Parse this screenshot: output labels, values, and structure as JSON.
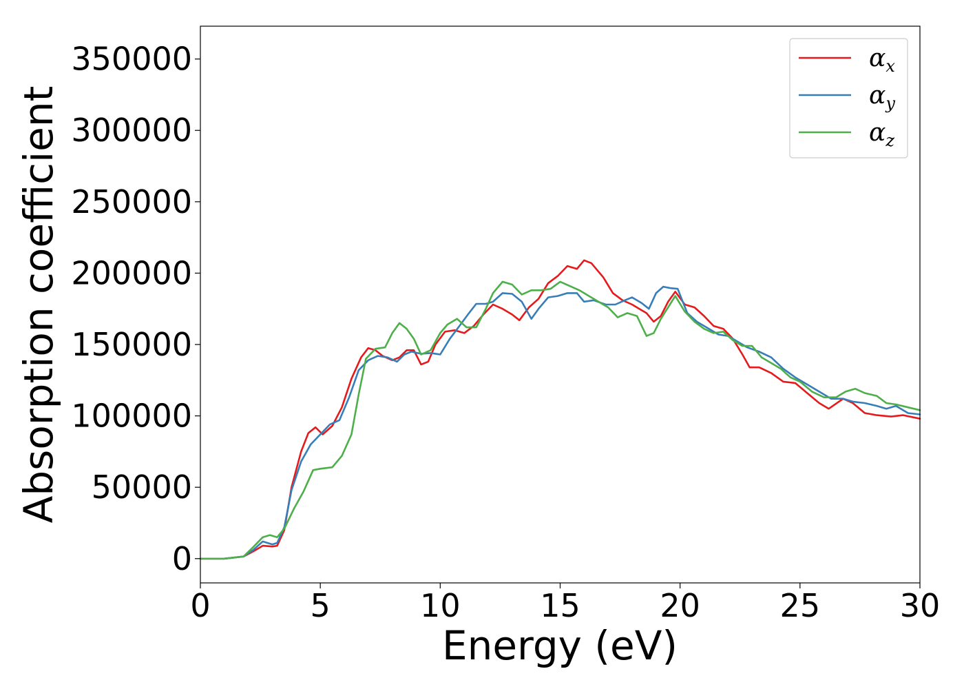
{
  "chart_data": {
    "type": "line",
    "xlabel": "Energy (eV)",
    "ylabel": "Absorption coefficient",
    "xlim": [
      0,
      30
    ],
    "ylim": [
      -17000,
      373000
    ],
    "xticks": [
      0,
      5,
      10,
      15,
      20,
      25,
      30
    ],
    "yticks": [
      0,
      50000,
      100000,
      150000,
      200000,
      250000,
      300000,
      350000
    ],
    "xtick_labels": [
      "0",
      "5",
      "10",
      "15",
      "20",
      "25",
      "30"
    ],
    "ytick_labels": [
      "0",
      "50000",
      "100000",
      "150000",
      "200000",
      "250000",
      "300000",
      "350000"
    ],
    "grid": false,
    "legend_position": "top-right",
    "series": [
      {
        "name": "αx",
        "symbol": "α",
        "subscript": "x",
        "color": "#e41a1c",
        "points": [
          [
            0,
            0
          ],
          [
            1,
            0
          ],
          [
            1.8,
            1500
          ],
          [
            2.2,
            5000
          ],
          [
            2.6,
            9000
          ],
          [
            3.0,
            8500
          ],
          [
            3.2,
            9000
          ],
          [
            3.5,
            20000
          ],
          [
            3.8,
            50000
          ],
          [
            4.2,
            75000
          ],
          [
            4.5,
            88000
          ],
          [
            4.8,
            92000
          ],
          [
            5.1,
            87000
          ],
          [
            5.5,
            93000
          ],
          [
            5.9,
            106000
          ],
          [
            6.3,
            126000
          ],
          [
            6.7,
            141000
          ],
          [
            7.0,
            147500
          ],
          [
            7.3,
            146000
          ],
          [
            7.6,
            142000
          ],
          [
            8.0,
            139000
          ],
          [
            8.3,
            141000
          ],
          [
            8.6,
            146000
          ],
          [
            8.9,
            146000
          ],
          [
            9.2,
            136000
          ],
          [
            9.5,
            138000
          ],
          [
            9.8,
            150000
          ],
          [
            10.2,
            159000
          ],
          [
            10.6,
            160000
          ],
          [
            11.0,
            158000
          ],
          [
            11.4,
            163000
          ],
          [
            11.8,
            171000
          ],
          [
            12.2,
            178000
          ],
          [
            12.6,
            175000
          ],
          [
            13.0,
            171000
          ],
          [
            13.3,
            167000
          ],
          [
            13.7,
            176000
          ],
          [
            14.1,
            182000
          ],
          [
            14.5,
            193000
          ],
          [
            14.9,
            198000
          ],
          [
            15.3,
            205000
          ],
          [
            15.7,
            203000
          ],
          [
            16.0,
            209000
          ],
          [
            16.3,
            207000
          ],
          [
            16.8,
            197000
          ],
          [
            17.2,
            186000
          ],
          [
            17.6,
            181000
          ],
          [
            18.0,
            178000
          ],
          [
            18.3,
            175000
          ],
          [
            18.6,
            172000
          ],
          [
            18.9,
            166000
          ],
          [
            19.2,
            170000
          ],
          [
            19.5,
            180000
          ],
          [
            19.8,
            187000
          ],
          [
            20.2,
            178000
          ],
          [
            20.6,
            176000
          ],
          [
            21.0,
            170000
          ],
          [
            21.4,
            163000
          ],
          [
            21.8,
            161000
          ],
          [
            22.2,
            154000
          ],
          [
            22.6,
            143000
          ],
          [
            22.9,
            134000
          ],
          [
            23.3,
            134000
          ],
          [
            23.8,
            130000
          ],
          [
            24.3,
            124000
          ],
          [
            24.8,
            123000
          ],
          [
            25.3,
            116000
          ],
          [
            25.8,
            109000
          ],
          [
            26.2,
            105000
          ],
          [
            26.8,
            112000
          ],
          [
            27.2,
            109000
          ],
          [
            27.7,
            102000
          ],
          [
            28.2,
            100500
          ],
          [
            28.8,
            99500
          ],
          [
            29.3,
            100500
          ],
          [
            30,
            98000
          ]
        ]
      },
      {
        "name": "αy",
        "symbol": "α",
        "subscript": "y",
        "color": "#377eb8",
        "points": [
          [
            0,
            0
          ],
          [
            1,
            0
          ],
          [
            1.8,
            1500
          ],
          [
            2.2,
            6000
          ],
          [
            2.6,
            12000
          ],
          [
            3.0,
            10000
          ],
          [
            3.2,
            11000
          ],
          [
            3.5,
            22000
          ],
          [
            3.8,
            48000
          ],
          [
            4.2,
            68000
          ],
          [
            4.6,
            80000
          ],
          [
            5.0,
            87000
          ],
          [
            5.4,
            94000
          ],
          [
            5.8,
            97000
          ],
          [
            6.2,
            113000
          ],
          [
            6.6,
            132000
          ],
          [
            7.0,
            139000
          ],
          [
            7.4,
            142000
          ],
          [
            7.8,
            141000
          ],
          [
            8.2,
            138000
          ],
          [
            8.5,
            143000
          ],
          [
            8.8,
            145000
          ],
          [
            9.2,
            143500
          ],
          [
            9.6,
            144000
          ],
          [
            10.0,
            143000
          ],
          [
            10.4,
            154000
          ],
          [
            10.8,
            163000
          ],
          [
            11.2,
            172000
          ],
          [
            11.5,
            178500
          ],
          [
            11.9,
            178500
          ],
          [
            12.2,
            180000
          ],
          [
            12.6,
            186000
          ],
          [
            13.0,
            185500
          ],
          [
            13.4,
            180000
          ],
          [
            13.8,
            168000
          ],
          [
            14.1,
            175000
          ],
          [
            14.5,
            183000
          ],
          [
            14.9,
            184000
          ],
          [
            15.3,
            186000
          ],
          [
            15.7,
            186000
          ],
          [
            16.0,
            180000
          ],
          [
            16.4,
            181000
          ],
          [
            16.9,
            178000
          ],
          [
            17.3,
            178000
          ],
          [
            17.7,
            181000
          ],
          [
            18.0,
            183000
          ],
          [
            18.4,
            179000
          ],
          [
            18.7,
            175000
          ],
          [
            19.0,
            186000
          ],
          [
            19.3,
            190500
          ],
          [
            19.6,
            189500
          ],
          [
            19.9,
            189000
          ],
          [
            20.3,
            172000
          ],
          [
            20.7,
            166000
          ],
          [
            21.1,
            162000
          ],
          [
            21.6,
            157000
          ],
          [
            22.0,
            156000
          ],
          [
            22.4,
            152000
          ],
          [
            22.8,
            148000
          ],
          [
            23.3,
            145000
          ],
          [
            23.8,
            141000
          ],
          [
            24.3,
            133000
          ],
          [
            24.8,
            127000
          ],
          [
            25.3,
            122000
          ],
          [
            25.8,
            117000
          ],
          [
            26.3,
            112000
          ],
          [
            26.8,
            112000
          ],
          [
            27.2,
            110000
          ],
          [
            27.7,
            109000
          ],
          [
            28.2,
            107000
          ],
          [
            28.6,
            105000
          ],
          [
            29.0,
            107000
          ],
          [
            29.5,
            102000
          ],
          [
            30,
            101000
          ]
        ]
      },
      {
        "name": "αz",
        "symbol": "α",
        "subscript": "z",
        "color": "#4daf4a",
        "points": [
          [
            0,
            0
          ],
          [
            1,
            0
          ],
          [
            1.8,
            1500
          ],
          [
            2.2,
            8000
          ],
          [
            2.6,
            15000
          ],
          [
            2.9,
            16500
          ],
          [
            3.2,
            15000
          ],
          [
            3.5,
            21000
          ],
          [
            3.9,
            35000
          ],
          [
            4.3,
            47000
          ],
          [
            4.7,
            62000
          ],
          [
            5.0,
            63000
          ],
          [
            5.5,
            64000
          ],
          [
            5.9,
            72000
          ],
          [
            6.3,
            87000
          ],
          [
            6.6,
            115000
          ],
          [
            6.9,
            140000
          ],
          [
            7.3,
            147000
          ],
          [
            7.7,
            148000
          ],
          [
            8.0,
            158000
          ],
          [
            8.3,
            165000
          ],
          [
            8.6,
            161000
          ],
          [
            8.9,
            154000
          ],
          [
            9.2,
            143000
          ],
          [
            9.6,
            146000
          ],
          [
            10.0,
            158000
          ],
          [
            10.3,
            164000
          ],
          [
            10.7,
            168000
          ],
          [
            11.1,
            162000
          ],
          [
            11.5,
            162000
          ],
          [
            11.9,
            175000
          ],
          [
            12.2,
            186000
          ],
          [
            12.6,
            194000
          ],
          [
            13.0,
            192000
          ],
          [
            13.4,
            185000
          ],
          [
            13.8,
            188000
          ],
          [
            14.2,
            188000
          ],
          [
            14.6,
            189000
          ],
          [
            15.0,
            194000
          ],
          [
            15.4,
            191000
          ],
          [
            15.8,
            188000
          ],
          [
            16.2,
            184000
          ],
          [
            16.6,
            180000
          ],
          [
            17.0,
            176000
          ],
          [
            17.4,
            169000
          ],
          [
            17.8,
            172000
          ],
          [
            18.2,
            170000
          ],
          [
            18.6,
            156000
          ],
          [
            18.9,
            158000
          ],
          [
            19.2,
            168000
          ],
          [
            19.5,
            176000
          ],
          [
            19.8,
            184000
          ],
          [
            20.2,
            173000
          ],
          [
            20.6,
            166000
          ],
          [
            21.0,
            161000
          ],
          [
            21.4,
            158000
          ],
          [
            21.8,
            159000
          ],
          [
            22.2,
            153000
          ],
          [
            22.6,
            149000
          ],
          [
            23.0,
            149000
          ],
          [
            23.4,
            141000
          ],
          [
            23.8,
            137000
          ],
          [
            24.2,
            133000
          ],
          [
            24.6,
            127000
          ],
          [
            25.0,
            124000
          ],
          [
            25.5,
            117000
          ],
          [
            26.0,
            113000
          ],
          [
            26.5,
            113000
          ],
          [
            26.9,
            117000
          ],
          [
            27.3,
            119000
          ],
          [
            27.7,
            116000
          ],
          [
            28.2,
            114000
          ],
          [
            28.6,
            109000
          ],
          [
            29.0,
            108000
          ],
          [
            29.5,
            106000
          ],
          [
            30,
            104000
          ]
        ]
      }
    ]
  }
}
